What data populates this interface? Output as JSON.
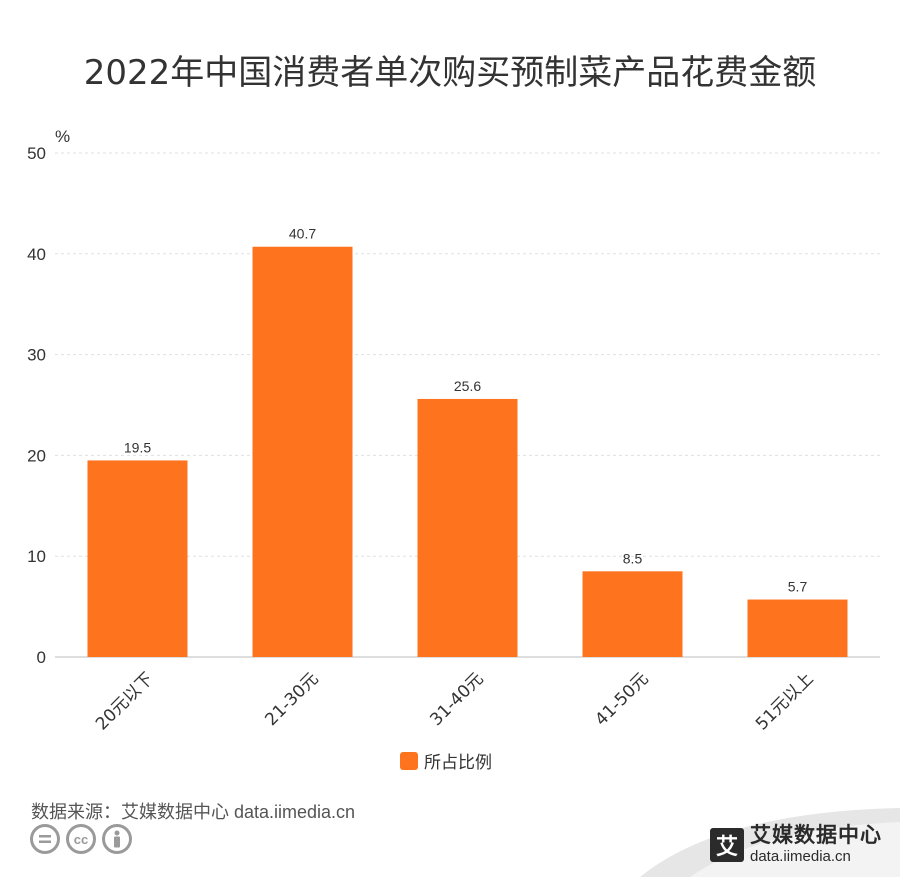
{
  "header": {
    "title": "2022年中国消费者单次购买预制菜产品花费金额"
  },
  "chart_data": {
    "type": "bar",
    "categories": [
      "20元以下",
      "21-30元",
      "31-40元",
      "41-50元",
      "51元以上"
    ],
    "series": [
      {
        "name": "所占比例",
        "values": [
          19.5,
          40.7,
          25.6,
          8.5,
          5.7
        ],
        "color": "#fd731e"
      }
    ],
    "data_labels": [
      "19.5",
      "40.7",
      "25.6",
      "8.5",
      "5.7"
    ],
    "title": "2022年中国消费者单次购买预制菜产品花费金额",
    "ylabel": "%",
    "ylim": [
      0,
      50
    ],
    "yticks": [
      0,
      10,
      20,
      30,
      40,
      50
    ],
    "ytick_labels": [
      "0",
      "10",
      "20",
      "30",
      "40",
      "50"
    ],
    "grid": true,
    "legend_position": "bottom"
  },
  "legend": {
    "label": "所占比例",
    "color": "#fd731e"
  },
  "footer": {
    "source": "数据来源：艾媒数据中心 data.iimedia.cn",
    "icons": [
      "equals-icon",
      "cc-icon",
      "person-icon"
    ],
    "cc_icon_text": "cc"
  },
  "brand": {
    "logo_char": "艾",
    "name": "艾媒数据中心",
    "url": "data.iimedia.cn"
  }
}
